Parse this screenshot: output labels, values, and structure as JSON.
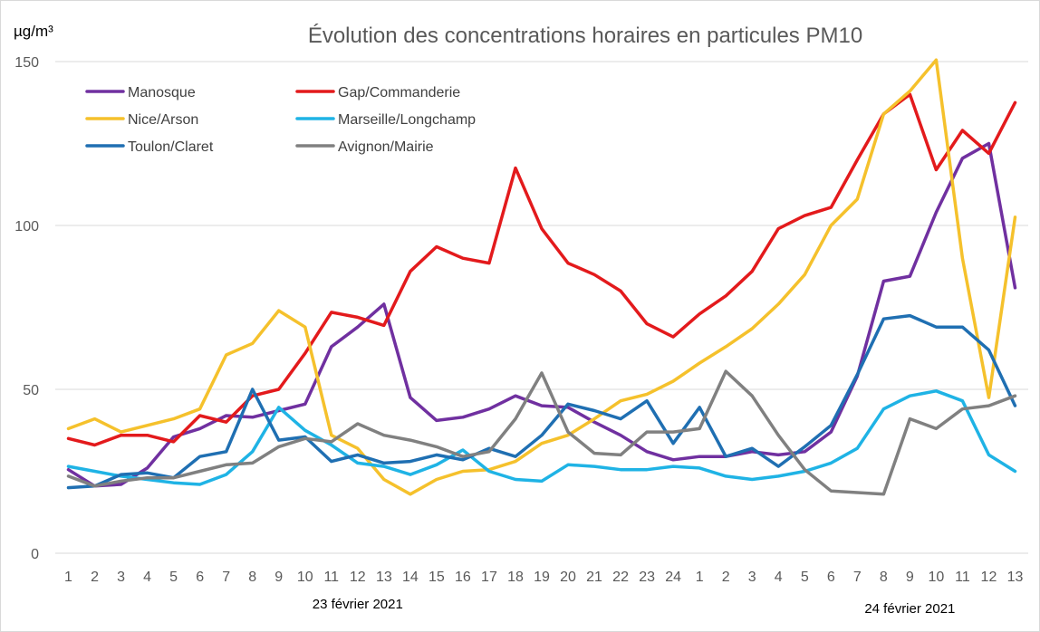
{
  "chart_data": {
    "type": "line",
    "title": "Évolution des concentrations horaires en particules PM10",
    "ylabel": "µg/m³",
    "ylim": [
      0,
      150
    ],
    "yticks": [
      0,
      50,
      100,
      150
    ],
    "grid": true,
    "legend_position": "top-left",
    "x": [
      "1",
      "2",
      "3",
      "4",
      "5",
      "6",
      "7",
      "8",
      "9",
      "10",
      "11",
      "12",
      "13",
      "14",
      "15",
      "16",
      "17",
      "18",
      "19",
      "20",
      "21",
      "22",
      "23",
      "24",
      "1",
      "2",
      "3",
      "4",
      "5",
      "6",
      "7",
      "8",
      "9",
      "10",
      "11",
      "12",
      "13"
    ],
    "date_labels": [
      {
        "label": "23 février 2021",
        "category_index": 11
      },
      {
        "label": "24 février 2021",
        "category_index": 32
      }
    ],
    "series": [
      {
        "name": "Manosque",
        "color": "#7030A0",
        "values": [
          25.5,
          20.5,
          21,
          26,
          35.5,
          38,
          42,
          41.5,
          43.5,
          45.5,
          63,
          69,
          76,
          47.5,
          40.5,
          41.5,
          44,
          48,
          45,
          44.5,
          40,
          36,
          31,
          28.5,
          29.5,
          29.5,
          31,
          30,
          31,
          37,
          54,
          83,
          84.5,
          104,
          120.5,
          125,
          81
        ]
      },
      {
        "name": "Gap/Commanderie",
        "color": "#E31A1C",
        "values": [
          35,
          33,
          36,
          36,
          34,
          42,
          40,
          48,
          50,
          61,
          73.5,
          72,
          69.5,
          86,
          93.5,
          90,
          88.5,
          117.5,
          99,
          88.5,
          85,
          80,
          70,
          66,
          73,
          78.5,
          86,
          99,
          103,
          105.5,
          120,
          134,
          140,
          117,
          129,
          122,
          137.5
        ]
      },
      {
        "name": "Nice/Arson",
        "color": "#F5C12C",
        "values": [
          38,
          41,
          37,
          39,
          41,
          44,
          60.5,
          64,
          74,
          69,
          36,
          32,
          22.5,
          18,
          22.5,
          25,
          25.5,
          28,
          33.5,
          36,
          41,
          46.5,
          48.5,
          52.5,
          58,
          63,
          68.5,
          76,
          85,
          100,
          108,
          134,
          141,
          150.5,
          90,
          47.5,
          102.5
        ]
      },
      {
        "name": "Marseille/Longchamp",
        "color": "#1FB3E5",
        "values": [
          26.5,
          25,
          23.5,
          22.5,
          21.5,
          21,
          24,
          31,
          44.5,
          37.5,
          33,
          27.5,
          26.5,
          24,
          27,
          31.5,
          25,
          22.5,
          22,
          27,
          26.5,
          25.5,
          25.5,
          26.5,
          26,
          23.5,
          22.5,
          23.5,
          25,
          27.5,
          32,
          44,
          48,
          49.5,
          46.5,
          30,
          25
        ]
      },
      {
        "name": "Toulon/Claret",
        "color": "#1F6FB2",
        "values": [
          20,
          20.5,
          24,
          24.5,
          23,
          29.5,
          31,
          50,
          34.5,
          35.5,
          28,
          30,
          27.5,
          28,
          30,
          28.5,
          32,
          29.5,
          36,
          45.5,
          43.5,
          41,
          46.5,
          33.5,
          44.5,
          29.5,
          32,
          26.5,
          32.5,
          39,
          54.5,
          71.5,
          72.5,
          69,
          69,
          62,
          45
        ]
      },
      {
        "name": "Avignon/Mairie",
        "color": "#808080",
        "values": [
          23.5,
          20.5,
          22,
          23,
          23,
          25,
          27,
          27.5,
          32.5,
          35,
          34,
          39.5,
          36,
          34.5,
          32.5,
          29.5,
          31,
          41,
          55,
          37,
          30.5,
          30,
          37,
          37,
          38,
          55.5,
          48,
          36,
          25.5,
          19,
          18.5,
          18,
          41,
          38,
          44,
          45,
          48
        ]
      }
    ]
  }
}
